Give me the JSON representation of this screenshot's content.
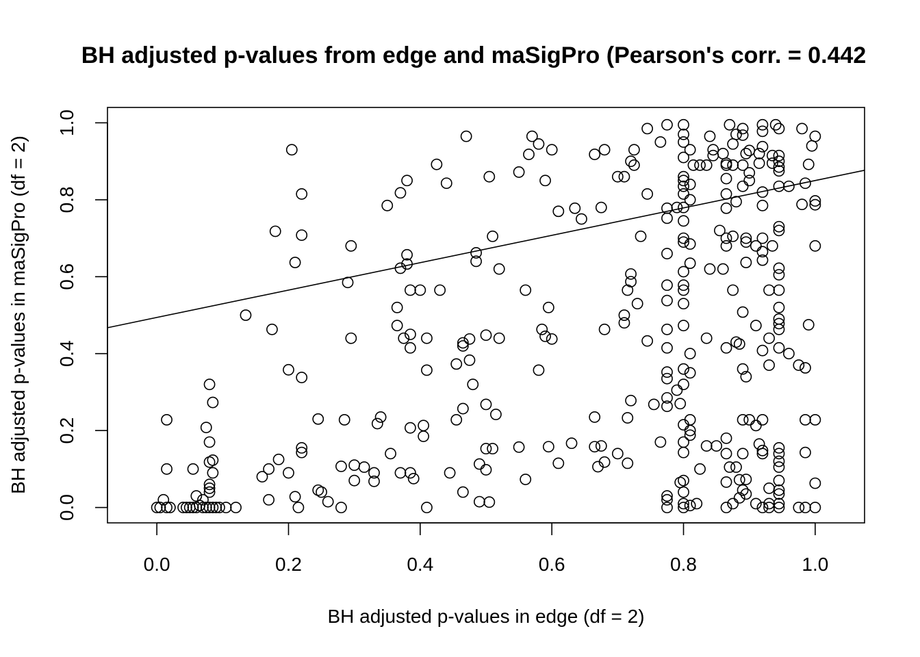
{
  "chart_data": {
    "type": "scatter",
    "title": "BH adjusted p-values from edge and maSigPro (Pearson's corr. = 0.442",
    "xlabel": "BH adjusted p-values in edge (df = 2)",
    "ylabel": "BH adjusted p-values in maSigPro (df = 2)",
    "xlim": [
      -0.075,
      1.075
    ],
    "ylim": [
      -0.04,
      1.04
    ],
    "x_ticks": [
      0.0,
      0.2,
      0.4,
      0.6,
      0.8,
      1.0
    ],
    "x_tick_labels": [
      "0.0",
      "0.2",
      "0.4",
      "0.6",
      "0.8",
      "1.0"
    ],
    "y_ticks": [
      0.0,
      0.2,
      0.4,
      0.6,
      0.8,
      1.0
    ],
    "y_tick_labels": [
      "0.0",
      "0.2",
      "0.4",
      "0.6",
      "0.8",
      "1.0"
    ],
    "grid": false,
    "fit_line": {
      "intercept": 0.494,
      "slope": 0.356
    },
    "points": [
      [
        0.0,
        0.0
      ],
      [
        0.005,
        0.0
      ],
      [
        0.01,
        0.02
      ],
      [
        0.015,
        0.0
      ],
      [
        0.02,
        0.0
      ],
      [
        0.04,
        0.0
      ],
      [
        0.045,
        0.0
      ],
      [
        0.05,
        0.0
      ],
      [
        0.055,
        0.0
      ],
      [
        0.06,
        0.0
      ],
      [
        0.065,
        0.005
      ],
      [
        0.07,
        0.0
      ],
      [
        0.075,
        0.0
      ],
      [
        0.08,
        0.0
      ],
      [
        0.085,
        0.0
      ],
      [
        0.09,
        0.0
      ],
      [
        0.095,
        0.0
      ],
      [
        0.105,
        0.0
      ],
      [
        0.12,
        0.0
      ],
      [
        0.015,
        0.1
      ],
      [
        0.015,
        0.228
      ],
      [
        0.055,
        0.1
      ],
      [
        0.06,
        0.03
      ],
      [
        0.07,
        0.02
      ],
      [
        0.075,
        0.208
      ],
      [
        0.08,
        0.04
      ],
      [
        0.08,
        0.05
      ],
      [
        0.08,
        0.06
      ],
      [
        0.08,
        0.118
      ],
      [
        0.08,
        0.17
      ],
      [
        0.08,
        0.32
      ],
      [
        0.085,
        0.09
      ],
      [
        0.085,
        0.123
      ],
      [
        0.085,
        0.273
      ],
      [
        0.135,
        0.5
      ],
      [
        0.16,
        0.08
      ],
      [
        0.17,
        0.1
      ],
      [
        0.17,
        0.02
      ],
      [
        0.175,
        0.463
      ],
      [
        0.18,
        0.718
      ],
      [
        0.185,
        0.125
      ],
      [
        0.2,
        0.09
      ],
      [
        0.2,
        0.358
      ],
      [
        0.205,
        0.93
      ],
      [
        0.21,
        0.637
      ],
      [
        0.21,
        0.028
      ],
      [
        0.215,
        0.0
      ],
      [
        0.22,
        0.143
      ],
      [
        0.22,
        0.155
      ],
      [
        0.22,
        0.338
      ],
      [
        0.22,
        0.708
      ],
      [
        0.22,
        0.815
      ],
      [
        0.245,
        0.045
      ],
      [
        0.245,
        0.23
      ],
      [
        0.25,
        0.04
      ],
      [
        0.26,
        0.015
      ],
      [
        0.28,
        0.0
      ],
      [
        0.28,
        0.107
      ],
      [
        0.285,
        0.228
      ],
      [
        0.29,
        0.585
      ],
      [
        0.295,
        0.44
      ],
      [
        0.295,
        0.68
      ],
      [
        0.3,
        0.07
      ],
      [
        0.3,
        0.11
      ],
      [
        0.315,
        0.105
      ],
      [
        0.33,
        0.068
      ],
      [
        0.33,
        0.09
      ],
      [
        0.335,
        0.218
      ],
      [
        0.34,
        0.235
      ],
      [
        0.35,
        0.785
      ],
      [
        0.355,
        0.14
      ],
      [
        0.365,
        0.52
      ],
      [
        0.365,
        0.473
      ],
      [
        0.37,
        0.09
      ],
      [
        0.37,
        0.622
      ],
      [
        0.37,
        0.818
      ],
      [
        0.375,
        0.44
      ],
      [
        0.38,
        0.633
      ],
      [
        0.38,
        0.657
      ],
      [
        0.38,
        0.85
      ],
      [
        0.385,
        0.565
      ],
      [
        0.385,
        0.45
      ],
      [
        0.385,
        0.415
      ],
      [
        0.385,
        0.207
      ],
      [
        0.385,
        0.09
      ],
      [
        0.39,
        0.075
      ],
      [
        0.4,
        0.565
      ],
      [
        0.405,
        0.185
      ],
      [
        0.405,
        0.213
      ],
      [
        0.41,
        0.44
      ],
      [
        0.41,
        0.357
      ],
      [
        0.41,
        0.0
      ],
      [
        0.43,
        0.565
      ],
      [
        0.425,
        0.892
      ],
      [
        0.44,
        0.843
      ],
      [
        0.445,
        0.09
      ],
      [
        0.455,
        0.228
      ],
      [
        0.455,
        0.373
      ],
      [
        0.465,
        0.257
      ],
      [
        0.465,
        0.42
      ],
      [
        0.465,
        0.428
      ],
      [
        0.465,
        0.04
      ],
      [
        0.47,
        0.965
      ],
      [
        0.475,
        0.383
      ],
      [
        0.475,
        0.438
      ],
      [
        0.48,
        0.32
      ],
      [
        0.485,
        0.64
      ],
      [
        0.485,
        0.662
      ],
      [
        0.49,
        0.113
      ],
      [
        0.49,
        0.015
      ],
      [
        0.5,
        0.448
      ],
      [
        0.5,
        0.268
      ],
      [
        0.5,
        0.153
      ],
      [
        0.5,
        0.098
      ],
      [
        0.505,
        0.86
      ],
      [
        0.51,
        0.705
      ],
      [
        0.515,
        0.242
      ],
      [
        0.52,
        0.44
      ],
      [
        0.52,
        0.62
      ],
      [
        0.51,
        0.153
      ],
      [
        0.505,
        0.014
      ],
      [
        0.55,
        0.872
      ],
      [
        0.55,
        0.157
      ],
      [
        0.56,
        0.073
      ],
      [
        0.56,
        0.565
      ],
      [
        0.565,
        0.918
      ],
      [
        0.57,
        0.965
      ],
      [
        0.58,
        0.357
      ],
      [
        0.58,
        0.945
      ],
      [
        0.585,
        0.463
      ],
      [
        0.59,
        0.85
      ],
      [
        0.59,
        0.445
      ],
      [
        0.595,
        0.52
      ],
      [
        0.595,
        0.158
      ],
      [
        0.6,
        0.438
      ],
      [
        0.6,
        0.93
      ],
      [
        0.61,
        0.77
      ],
      [
        0.61,
        0.115
      ],
      [
        0.63,
        0.167
      ],
      [
        0.635,
        0.778
      ],
      [
        0.645,
        0.75
      ],
      [
        0.665,
        0.158
      ],
      [
        0.665,
        0.235
      ],
      [
        0.665,
        0.918
      ],
      [
        0.67,
        0.106
      ],
      [
        0.675,
        0.78
      ],
      [
        0.675,
        0.16
      ],
      [
        0.68,
        0.93
      ],
      [
        0.68,
        0.463
      ],
      [
        0.68,
        0.118
      ],
      [
        0.7,
        0.14
      ],
      [
        0.7,
        0.86
      ],
      [
        0.71,
        0.86
      ],
      [
        0.71,
        0.48
      ],
      [
        0.71,
        0.5
      ],
      [
        0.715,
        0.565
      ],
      [
        0.715,
        0.233
      ],
      [
        0.715,
        0.115
      ],
      [
        0.72,
        0.9
      ],
      [
        0.72,
        0.587
      ],
      [
        0.72,
        0.607
      ],
      [
        0.72,
        0.278
      ],
      [
        0.725,
        0.89
      ],
      [
        0.725,
        0.93
      ],
      [
        0.73,
        0.53
      ],
      [
        0.735,
        0.705
      ],
      [
        0.745,
        0.815
      ],
      [
        0.745,
        0.985
      ],
      [
        0.745,
        0.433
      ],
      [
        0.755,
        0.268
      ],
      [
        0.765,
        0.95
      ],
      [
        0.765,
        0.17
      ],
      [
        0.775,
        0.995
      ],
      [
        0.775,
        0.778
      ],
      [
        0.775,
        0.752
      ],
      [
        0.775,
        0.66
      ],
      [
        0.775,
        0.578
      ],
      [
        0.775,
        0.538
      ],
      [
        0.775,
        0.463
      ],
      [
        0.775,
        0.415
      ],
      [
        0.775,
        0.352
      ],
      [
        0.775,
        0.335
      ],
      [
        0.775,
        0.285
      ],
      [
        0.775,
        0.263
      ],
      [
        0.775,
        0.03
      ],
      [
        0.775,
        0.02
      ],
      [
        0.775,
        0.0
      ],
      [
        0.79,
        0.78
      ],
      [
        0.79,
        0.305
      ],
      [
        0.795,
        0.27
      ],
      [
        0.795,
        0.065
      ],
      [
        0.8,
        0.995
      ],
      [
        0.8,
        0.97
      ],
      [
        0.8,
        0.95
      ],
      [
        0.8,
        0.91
      ],
      [
        0.8,
        0.86
      ],
      [
        0.8,
        0.85
      ],
      [
        0.8,
        0.835
      ],
      [
        0.8,
        0.815
      ],
      [
        0.8,
        0.78
      ],
      [
        0.8,
        0.745
      ],
      [
        0.8,
        0.7
      ],
      [
        0.8,
        0.69
      ],
      [
        0.8,
        0.613
      ],
      [
        0.8,
        0.578
      ],
      [
        0.8,
        0.565
      ],
      [
        0.8,
        0.53
      ],
      [
        0.8,
        0.473
      ],
      [
        0.8,
        0.36
      ],
      [
        0.8,
        0.32
      ],
      [
        0.8,
        0.215
      ],
      [
        0.8,
        0.17
      ],
      [
        0.8,
        0.143
      ],
      [
        0.8,
        0.07
      ],
      [
        0.8,
        0.04
      ],
      [
        0.8,
        0.01
      ],
      [
        0.8,
        0.0
      ],
      [
        0.81,
        0.93
      ],
      [
        0.81,
        0.84
      ],
      [
        0.81,
        0.685
      ],
      [
        0.81,
        0.635
      ],
      [
        0.81,
        0.4
      ],
      [
        0.81,
        0.35
      ],
      [
        0.81,
        0.228
      ],
      [
        0.81,
        0.188
      ],
      [
        0.81,
        0.2
      ],
      [
        0.81,
        0.005
      ],
      [
        0.81,
        0.8
      ],
      [
        0.815,
        0.89
      ],
      [
        0.82,
        0.01
      ],
      [
        0.825,
        0.1
      ],
      [
        0.825,
        0.89
      ],
      [
        0.835,
        0.89
      ],
      [
        0.835,
        0.16
      ],
      [
        0.835,
        0.44
      ],
      [
        0.84,
        0.62
      ],
      [
        0.84,
        0.965
      ],
      [
        0.845,
        0.93
      ],
      [
        0.845,
        0.915
      ],
      [
        0.85,
        0.16
      ],
      [
        0.855,
        0.72
      ],
      [
        0.86,
        0.92
      ],
      [
        0.86,
        0.62
      ],
      [
        0.865,
        0.0
      ],
      [
        0.865,
        0.89
      ],
      [
        0.865,
        0.895
      ],
      [
        0.865,
        0.855
      ],
      [
        0.865,
        0.815
      ],
      [
        0.865,
        0.778
      ],
      [
        0.865,
        0.7
      ],
      [
        0.865,
        0.68
      ],
      [
        0.865,
        0.415
      ],
      [
        0.865,
        0.18
      ],
      [
        0.865,
        0.14
      ],
      [
        0.865,
        0.066
      ],
      [
        0.87,
        0.995
      ],
      [
        0.87,
        0.105
      ],
      [
        0.875,
        0.945
      ],
      [
        0.875,
        0.89
      ],
      [
        0.875,
        0.705
      ],
      [
        0.875,
        0.565
      ],
      [
        0.875,
        0.01
      ],
      [
        0.88,
        0.97
      ],
      [
        0.88,
        0.795
      ],
      [
        0.88,
        0.105
      ],
      [
        0.88,
        0.43
      ],
      [
        0.885,
        0.425
      ],
      [
        0.885,
        0.072
      ],
      [
        0.885,
        0.025
      ],
      [
        0.89,
        0.985
      ],
      [
        0.89,
        0.968
      ],
      [
        0.89,
        0.89
      ],
      [
        0.89,
        0.835
      ],
      [
        0.89,
        0.508
      ],
      [
        0.89,
        0.36
      ],
      [
        0.89,
        0.228
      ],
      [
        0.89,
        0.14
      ],
      [
        0.89,
        0.045
      ],
      [
        0.895,
        0.92
      ],
      [
        0.895,
        0.7
      ],
      [
        0.895,
        0.69
      ],
      [
        0.895,
        0.637
      ],
      [
        0.895,
        0.34
      ],
      [
        0.895,
        0.073
      ],
      [
        0.895,
        0.035
      ],
      [
        0.9,
        0.928
      ],
      [
        0.9,
        0.85
      ],
      [
        0.9,
        0.87
      ],
      [
        0.9,
        0.228
      ],
      [
        0.91,
        0.68
      ],
      [
        0.91,
        0.473
      ],
      [
        0.91,
        0.213
      ],
      [
        0.91,
        0.01
      ],
      [
        0.915,
        0.165
      ],
      [
        0.915,
        0.92
      ],
      [
        0.915,
        0.895
      ],
      [
        0.92,
        0.995
      ],
      [
        0.92,
        0.978
      ],
      [
        0.92,
        0.938
      ],
      [
        0.92,
        0.82
      ],
      [
        0.92,
        0.785
      ],
      [
        0.92,
        0.7
      ],
      [
        0.92,
        0.665
      ],
      [
        0.92,
        0.643
      ],
      [
        0.92,
        0.408
      ],
      [
        0.92,
        0.228
      ],
      [
        0.92,
        0.148
      ],
      [
        0.92,
        0.14
      ],
      [
        0.92,
        0.0
      ],
      [
        0.93,
        0.01
      ],
      [
        0.93,
        0.565
      ],
      [
        0.93,
        0.44
      ],
      [
        0.93,
        0.37
      ],
      [
        0.93,
        0.05
      ],
      [
        0.93,
        0.0
      ],
      [
        0.935,
        0.915
      ],
      [
        0.935,
        0.895
      ],
      [
        0.935,
        0.68
      ],
      [
        0.94,
        0.995
      ],
      [
        0.945,
        0.985
      ],
      [
        0.945,
        0.915
      ],
      [
        0.945,
        0.9
      ],
      [
        0.945,
        0.885
      ],
      [
        0.945,
        0.875
      ],
      [
        0.945,
        0.835
      ],
      [
        0.945,
        0.73
      ],
      [
        0.945,
        0.72
      ],
      [
        0.945,
        0.622
      ],
      [
        0.945,
        0.605
      ],
      [
        0.945,
        0.565
      ],
      [
        0.945,
        0.52
      ],
      [
        0.945,
        0.49
      ],
      [
        0.945,
        0.478
      ],
      [
        0.945,
        0.463
      ],
      [
        0.945,
        0.415
      ],
      [
        0.945,
        0.155
      ],
      [
        0.945,
        0.14
      ],
      [
        0.945,
        0.12
      ],
      [
        0.945,
        0.105
      ],
      [
        0.945,
        0.07
      ],
      [
        0.945,
        0.045
      ],
      [
        0.945,
        0.035
      ],
      [
        0.945,
        0.01
      ],
      [
        0.945,
        0.0
      ],
      [
        0.96,
        0.835
      ],
      [
        0.96,
        0.4
      ],
      [
        0.975,
        0.37
      ],
      [
        0.975,
        0.0
      ],
      [
        0.98,
        0.985
      ],
      [
        0.98,
        0.788
      ],
      [
        0.985,
        0.843
      ],
      [
        0.985,
        0.228
      ],
      [
        0.985,
        0.143
      ],
      [
        0.985,
        0.363
      ],
      [
        0.985,
        0.0
      ],
      [
        0.99,
        0.892
      ],
      [
        0.99,
        0.475
      ],
      [
        0.995,
        0.94
      ],
      [
        1.0,
        0.965
      ],
      [
        1.0,
        0.797
      ],
      [
        1.0,
        0.787
      ],
      [
        1.0,
        0.68
      ],
      [
        1.0,
        0.228
      ],
      [
        1.0,
        0.063
      ],
      [
        1.0,
        0.0
      ]
    ]
  }
}
